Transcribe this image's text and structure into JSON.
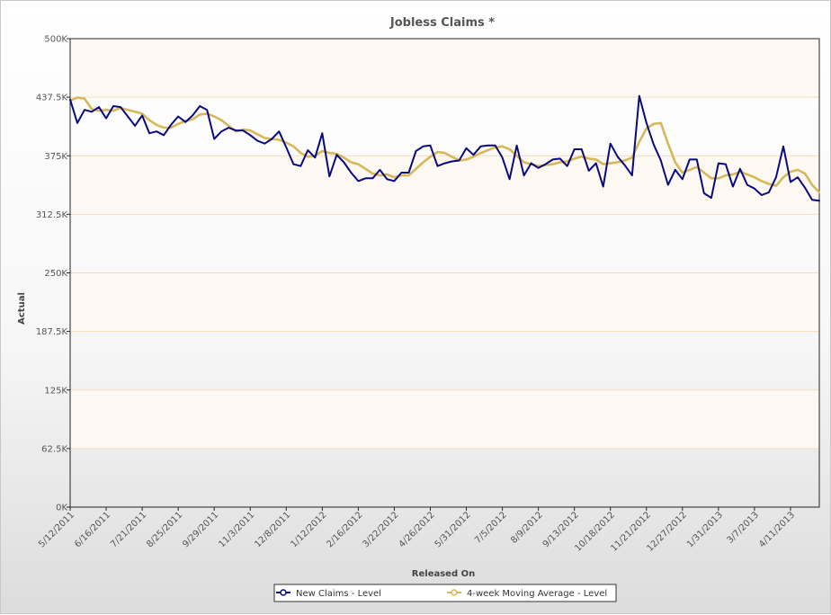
{
  "chart_data": {
    "type": "line",
    "title": "Jobless Claims *",
    "xlabel": "Released On",
    "ylabel": "Actual",
    "ylim": [
      0,
      500000
    ],
    "yticks": [
      0,
      62500,
      125000,
      187500,
      250000,
      312500,
      375000,
      437500,
      500000
    ],
    "ytick_labels": [
      "0K",
      "62.5K",
      "125K",
      "187.5K",
      "250K",
      "312.5K",
      "375K",
      "437.5K",
      "500K"
    ],
    "xtick_labels": [
      "5/12/2011",
      "6/16/2011",
      "7/21/2011",
      "8/25/2011",
      "9/29/2011",
      "11/3/2011",
      "12/8/2011",
      "1/12/2012",
      "2/16/2012",
      "3/22/2012",
      "4/26/2012",
      "5/31/2012",
      "7/5/2012",
      "8/9/2012",
      "9/13/2012",
      "10/18/2012",
      "11/21/2012",
      "12/27/2012",
      "1/31/2013",
      "3/7/2013",
      "4/11/2013"
    ],
    "grid": true,
    "band_fill": "#fdf8f2",
    "grid_color": "#f5dcc0",
    "legend_position": "bottom",
    "series": [
      {
        "name": "New Claims - Level",
        "color": "#0a0a80",
        "marker": "circle",
        "values": [
          435000,
          410000,
          424000,
          422000,
          427000,
          415000,
          428000,
          427000,
          417000,
          407000,
          418000,
          399000,
          401000,
          397000,
          408000,
          417000,
          411000,
          418000,
          428000,
          424000,
          393000,
          401000,
          405000,
          402000,
          402000,
          397000,
          391000,
          388000,
          393000,
          401000,
          384000,
          366000,
          364000,
          381000,
          373000,
          399000,
          353000,
          376000,
          368000,
          357000,
          348000,
          351000,
          351000,
          360000,
          350000,
          348000,
          357000,
          357000,
          380000,
          385000,
          386000,
          364000,
          367000,
          369000,
          370000,
          383000,
          376000,
          385000,
          386000,
          386000,
          373000,
          350000,
          386000,
          354000,
          367000,
          362000,
          366000,
          371000,
          372000,
          364000,
          382000,
          382000,
          359000,
          367000,
          342000,
          388000,
          374000,
          365000,
          354000,
          439000,
          410000,
          387000,
          370000,
          344000,
          360000,
          350000,
          371000,
          371000,
          335000,
          330000,
          367000,
          366000,
          342000,
          361000,
          344000,
          340000,
          333000,
          336000,
          352000,
          385000,
          347000,
          352000,
          341000,
          328000,
          327000
        ]
      },
      {
        "name": "4-week Moving Average - Level",
        "color": "#d6b85a",
        "marker": "circle",
        "values": [
          434000,
          437000,
          436000,
          425000,
          423000,
          424000,
          423000,
          426000,
          424000,
          422000,
          420000,
          413000,
          408000,
          405000,
          405000,
          409000,
          412000,
          414000,
          419000,
          420000,
          417000,
          413000,
          407000,
          401000,
          403000,
          402000,
          398000,
          394000,
          393000,
          392000,
          389000,
          385000,
          378000,
          374000,
          375000,
          380000,
          378000,
          377000,
          373000,
          368000,
          366000,
          361000,
          356000,
          354000,
          355000,
          352000,
          354000,
          354000,
          361000,
          368000,
          374000,
          379000,
          378000,
          374000,
          370000,
          371000,
          374000,
          378000,
          381000,
          384000,
          385000,
          382000,
          375000,
          368000,
          366000,
          364000,
          365000,
          366000,
          368000,
          369000,
          372000,
          374000,
          372000,
          371000,
          366000,
          367000,
          368000,
          370000,
          373000,
          390000,
          404000,
          409000,
          410000,
          388000,
          368000,
          357000,
          360000,
          363000,
          357000,
          351000,
          351000,
          354000,
          355000,
          358000,
          355000,
          352000,
          348000,
          345000,
          343000,
          352000,
          358000,
          360000,
          356000,
          344000,
          336000
        ]
      }
    ]
  }
}
